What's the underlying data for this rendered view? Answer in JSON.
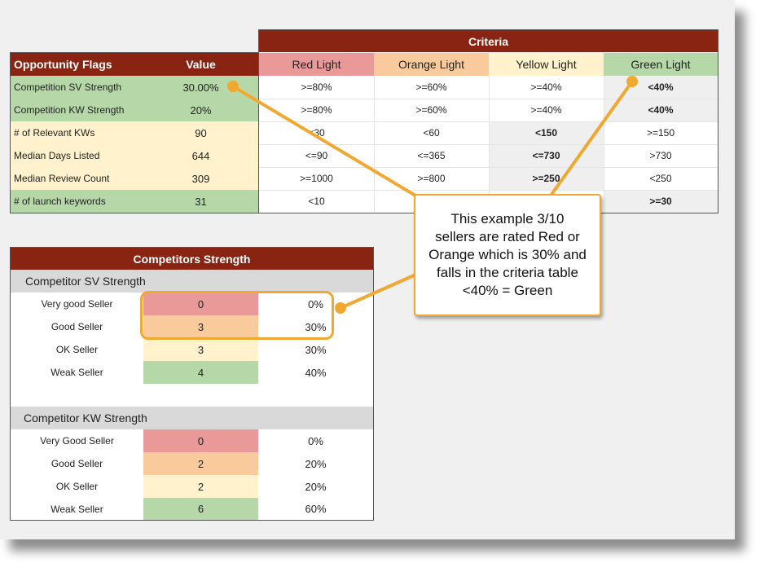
{
  "opportunity": {
    "col_flags": "Opportunity Flags",
    "col_value": "Value",
    "rows": [
      {
        "label": "Competition SV Strength",
        "value": "30.00%"
      },
      {
        "label": "Competition KW Strength",
        "value": "20%"
      },
      {
        "label": "# of Relevant KWs",
        "value": "90"
      },
      {
        "label": "Median Days Listed",
        "value": "644"
      },
      {
        "label": "Median Review Count",
        "value": "309"
      },
      {
        "label": "# of launch keywords",
        "value": "31"
      }
    ]
  },
  "criteria": {
    "title": "Criteria",
    "headers": [
      "Red Light",
      "Orange Light",
      "Yellow Light",
      "Green Light"
    ],
    "rows": [
      [
        ">=80%",
        ">=60%",
        ">=40%",
        "<40%"
      ],
      [
        ">=80%",
        ">=60%",
        ">=40%",
        "<40%"
      ],
      [
        "<30",
        "<60",
        "<150",
        ">=150"
      ],
      [
        "<=90",
        "<=365",
        "<=730",
        ">730"
      ],
      [
        ">=1000",
        ">=800",
        ">=250",
        "<250"
      ],
      [
        "<10",
        "",
        "",
        ">=30"
      ]
    ]
  },
  "competitors": {
    "title": "Competitors Strength",
    "sv": {
      "title": "Competitor SV Strength",
      "rows": [
        {
          "label": "Very good Seller",
          "count": "0",
          "pct": "0%"
        },
        {
          "label": "Good Seller",
          "count": "3",
          "pct": "30%"
        },
        {
          "label": "OK Seller",
          "count": "3",
          "pct": "30%"
        },
        {
          "label": "Weak Seller",
          "count": "4",
          "pct": "40%"
        }
      ]
    },
    "kw": {
      "title": "Competitor KW Strength",
      "rows": [
        {
          "label": "Very Good Seller",
          "count": "0",
          "pct": "0%"
        },
        {
          "label": "Good Seller",
          "count": "2",
          "pct": "20%"
        },
        {
          "label": "OK Seller",
          "count": "2",
          "pct": "20%"
        },
        {
          "label": "Weak Seller",
          "count": "6",
          "pct": "60%"
        }
      ]
    }
  },
  "callout": {
    "lines": [
      "This example 3/10",
      "sellers are rated Red or",
      "Orange which is 30% and",
      "falls in the criteria table",
      "<40% = Green"
    ]
  },
  "colors": {
    "header": "#8a2412",
    "red": "#ea9999",
    "orange": "#f9cb9c",
    "yellow": "#fff2cc",
    "green": "#b6d7a8",
    "callout_border": "#f0a830"
  }
}
